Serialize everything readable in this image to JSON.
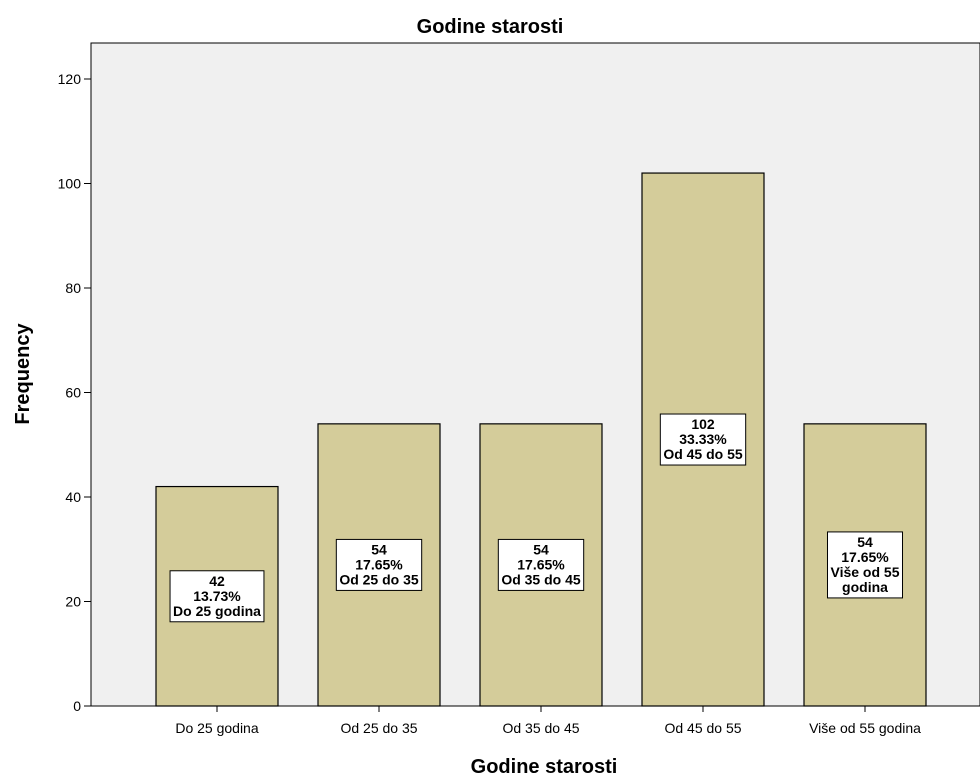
{
  "chart_data": {
    "type": "bar",
    "title": "Godine starosti",
    "xlabel": "Godine starosti",
    "ylabel": "Frequency",
    "categories": [
      "Do 25 godina",
      "Od 25 do 35",
      "Od 35 do 45",
      "Od 45 do 55",
      "Više od 55 godina"
    ],
    "values": [
      42,
      54,
      54,
      102,
      54
    ],
    "data_labels": [
      [
        "42",
        "13.73%",
        "Do 25 godina"
      ],
      [
        "54",
        "17.65%",
        "Od 25 do 35"
      ],
      [
        "54",
        "17.65%",
        "Od 35 do 45"
      ],
      [
        "102",
        "33.33%",
        "Od 45 do 55"
      ],
      [
        "54",
        "17.65%",
        "Više od 55",
        "godina"
      ]
    ],
    "ylim": [
      0,
      120
    ],
    "yticks": [
      "0",
      "20",
      "40",
      "60",
      "80",
      "100",
      "120"
    ],
    "grid": false,
    "legend": "none",
    "colors": {
      "bar_fill": "#d4cc9a",
      "plot_background": "#f0f0f0",
      "axis": "#000000",
      "label_box": "#ffffff"
    }
  }
}
